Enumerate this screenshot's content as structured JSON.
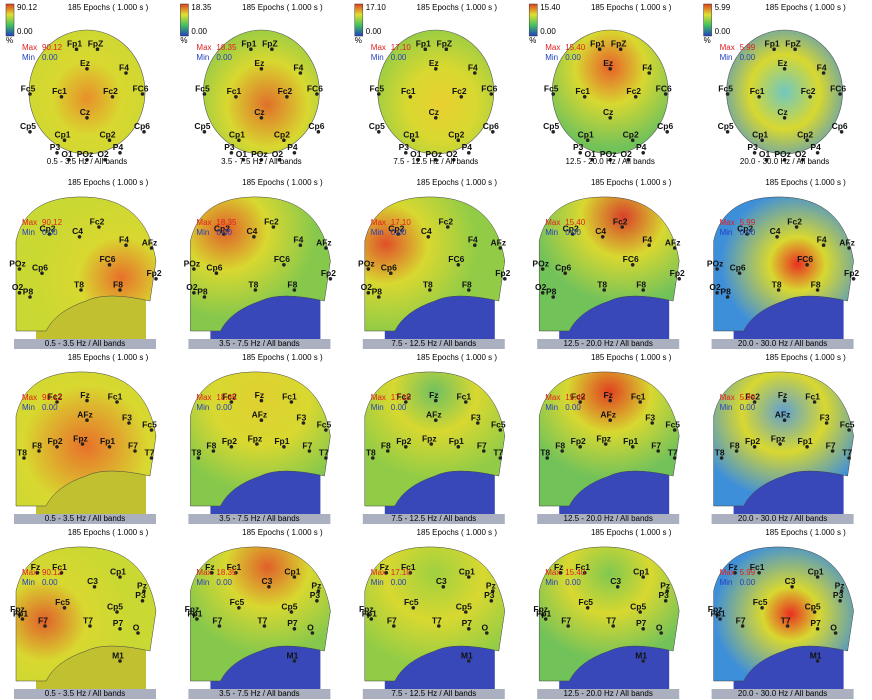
{
  "epochs": "185 Epochs ( 1.000 s )",
  "max_label": "Max",
  "min_label": "Min",
  "unit": "%",
  "bands": [
    {
      "max": "90.12",
      "min": "0.00",
      "label": "0.5 - 3.5 Hz / All bands"
    },
    {
      "max": "18.35",
      "min": "0.00",
      "label": "3.5 - 7.5 Hz / All bands"
    },
    {
      "max": "17.10",
      "min": "0.00",
      "label": "7.5 - 12.5 Hz / All bands"
    },
    {
      "max": "15.40",
      "min": "0.00",
      "label": "12.5 - 20.0 Hz / All bands"
    },
    {
      "max": "5.99",
      "min": "0.00",
      "label": "20.0 - 30.0 Hz / All bands"
    }
  ],
  "views": [
    {
      "electrodes": [
        "Fp1",
        "FpZ",
        "Ez",
        "F4",
        "Fc5",
        "FC6",
        "Fc1",
        "Fc2",
        "Cz",
        "Cp5",
        "Cp6",
        "Cp1",
        "Cp2",
        "P3",
        "P4",
        "O1",
        "POz",
        "O2"
      ]
    },
    {
      "electrodes": [
        "Cp2",
        "C4",
        "Fc2",
        "F4",
        "AFz",
        "FC6",
        "POz",
        "Cp6",
        "Fp2",
        "T8",
        "F8",
        "O2",
        "P8"
      ]
    },
    {
      "electrodes": [
        "Fc2",
        "Fz",
        "Fc1",
        "AFz",
        "F3",
        "Fc5",
        "Fp2",
        "Fpz",
        "Fp1",
        "F8",
        "F7",
        "T8",
        "T7"
      ]
    },
    {
      "electrodes": [
        "Fz",
        "Fc1",
        "Cp1",
        "C3",
        "Pz",
        "P3",
        "Fc5",
        "Cp5",
        "Fpz",
        "F7",
        "T7",
        "P7",
        "O",
        "M1",
        "Fp1"
      ]
    }
  ]
}
